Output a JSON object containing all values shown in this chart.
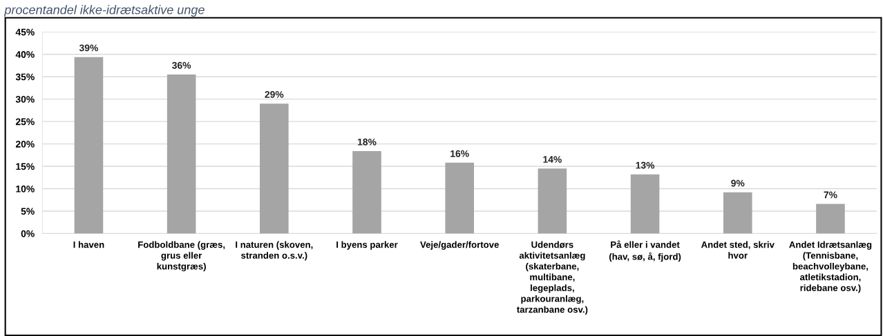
{
  "chart_data": {
    "type": "bar",
    "title": "procentandel ikke-idrætsaktive unge",
    "categories": [
      "I haven",
      "Fodboldbane (græs,\ngrus eller\nkunstgræs)",
      "I naturen (skoven,\nstranden o.s.v.)",
      "I byens parker",
      "Veje/gader/fortove",
      "Udendørs\naktivitetsanlæg\n(skaterbane,\nmultibane,\nlegeplads,\nparkouranlæg,\ntarzanbane osv.)",
      "På eller i vandet\n(hav, sø, å, fjord)",
      "Andet sted, skriv\nhvor",
      "Andet Idrætsanlæg\n(Tennisbane,\nbeachvolleybane,\natletikstadion,\nridebane osv.)"
    ],
    "values": [
      39.4,
      35.5,
      29.0,
      18.4,
      15.8,
      14.5,
      13.2,
      9.2,
      6.6
    ],
    "value_labels": [
      "39%",
      "36%",
      "29%",
      "18%",
      "16%",
      "14%",
      "13%",
      "9%",
      "7%"
    ],
    "color": "#a5a5a5",
    "ylim": [
      0,
      45
    ],
    "yticks": [
      {
        "value": 0,
        "label": "0%"
      },
      {
        "value": 5,
        "label": "5%"
      },
      {
        "value": 10,
        "label": "10%"
      },
      {
        "value": 15,
        "label": "15%"
      },
      {
        "value": 20,
        "label": "20%"
      },
      {
        "value": 25,
        "label": "25%"
      },
      {
        "value": 30,
        "label": "30%"
      },
      {
        "value": 35,
        "label": "35%"
      },
      {
        "value": 40,
        "label": "40%"
      },
      {
        "value": 45,
        "label": "45%"
      }
    ],
    "grid": "y"
  }
}
